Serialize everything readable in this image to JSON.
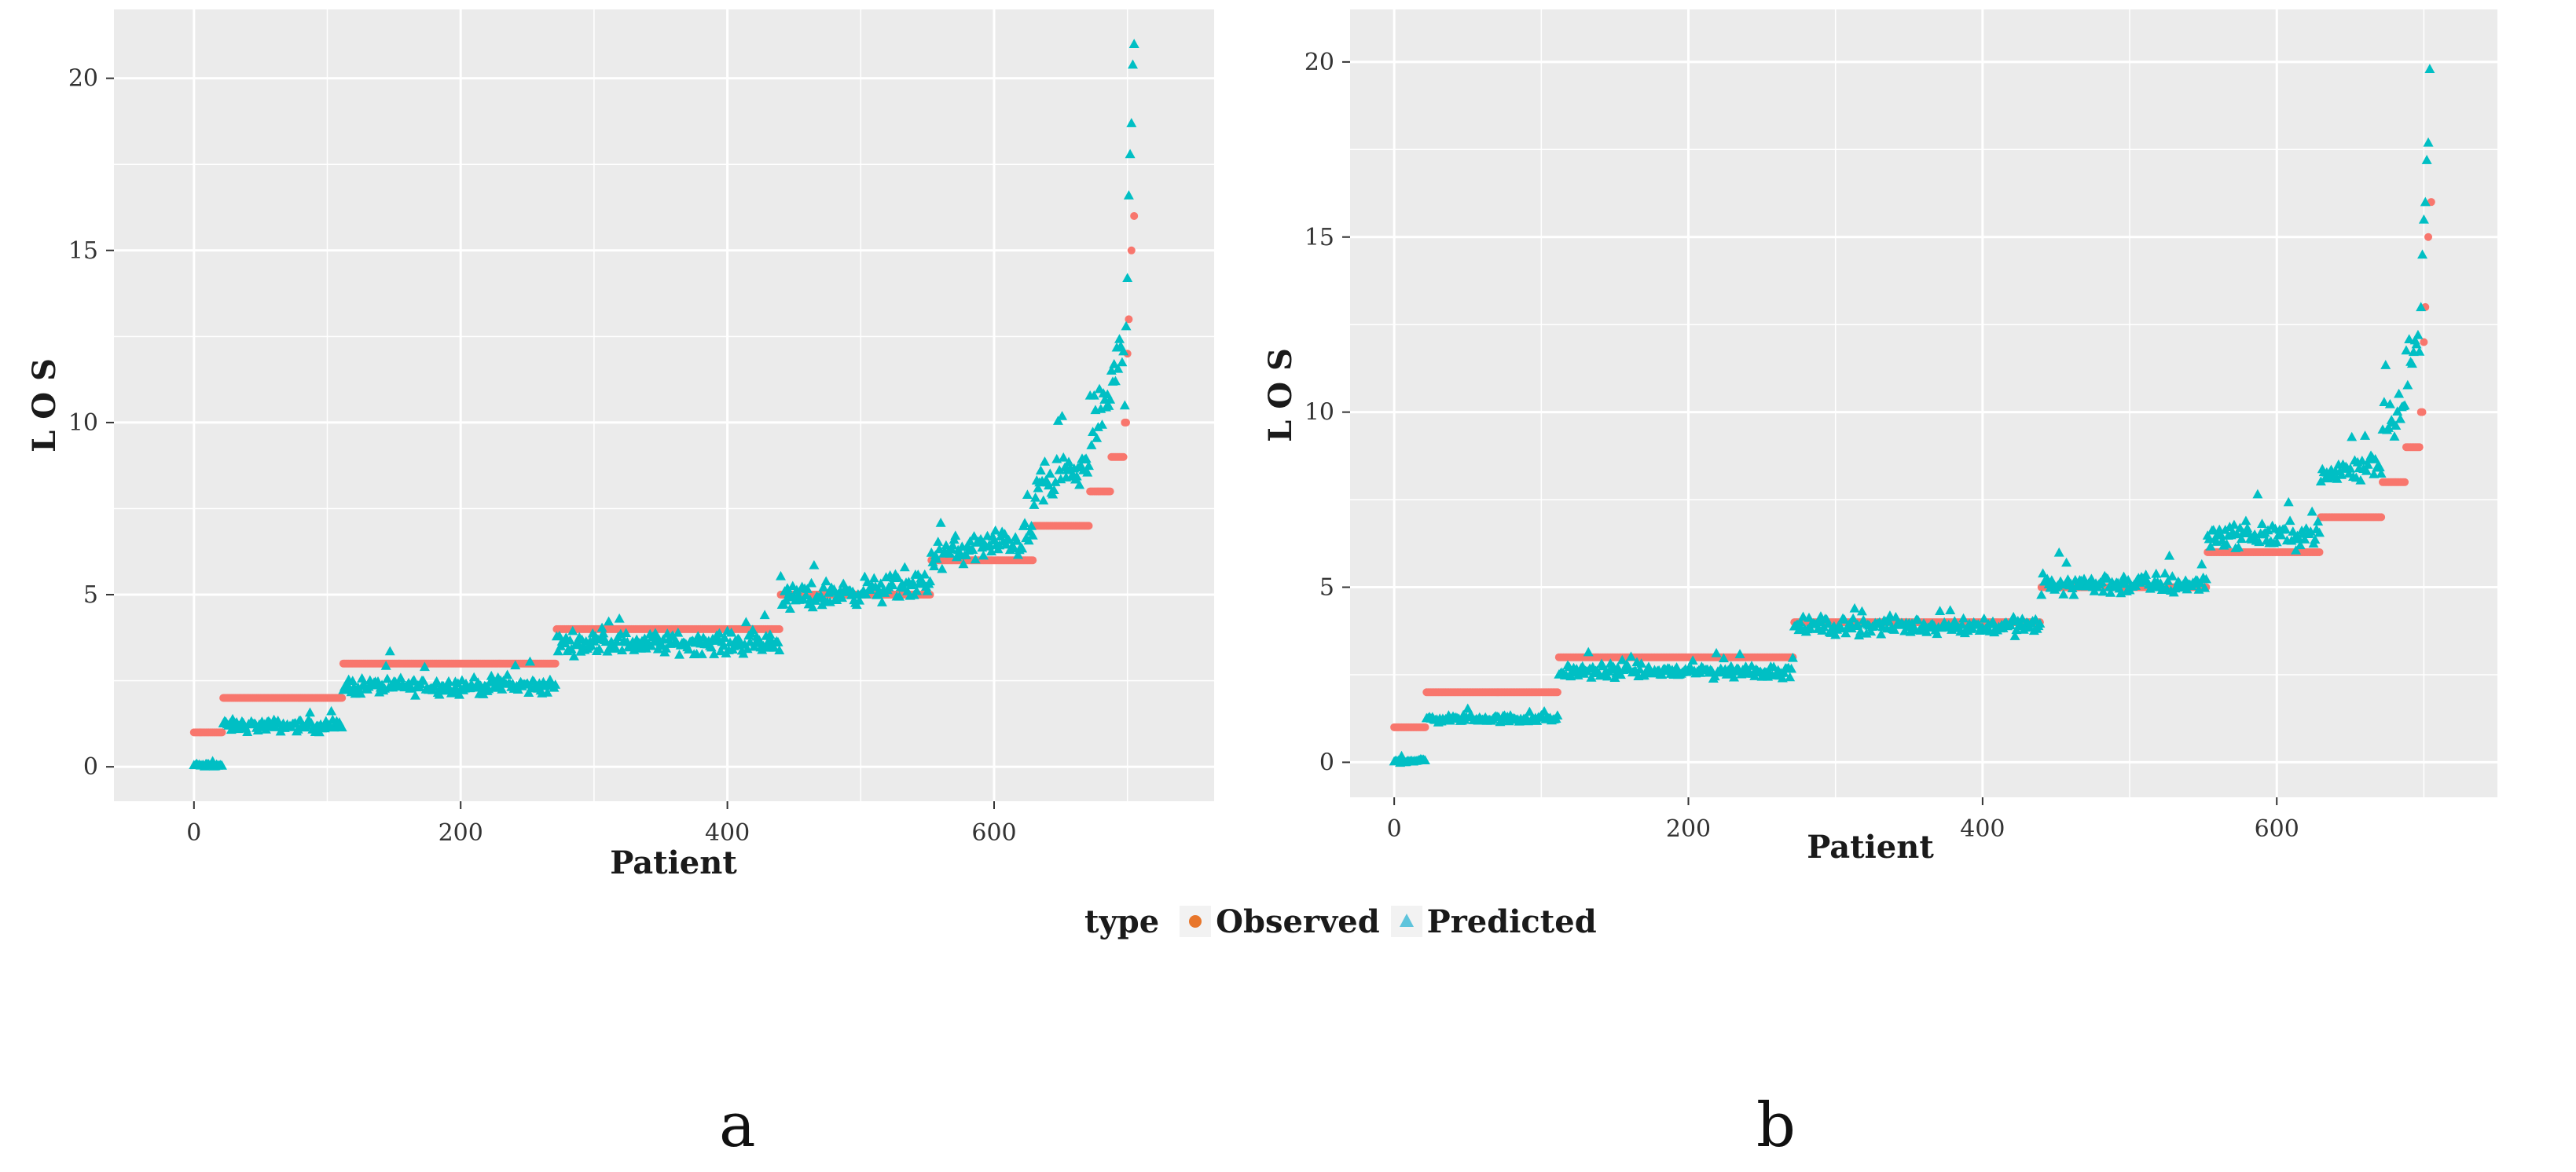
{
  "chart_data": [
    {
      "panel_label": "a",
      "type": "scatter",
      "xlabel": "Patient",
      "ylabel": "L O S",
      "xlim": [
        -60,
        765
      ],
      "ylim": [
        -1.0,
        22.0
      ],
      "xticks": [
        0,
        200,
        400,
        600
      ],
      "yticks": [
        0,
        5,
        10,
        15,
        20
      ],
      "grid": true,
      "observed_los_groups": [
        {
          "los": 1,
          "from": 0,
          "to": 22
        },
        {
          "los": 2,
          "from": 22,
          "to": 112
        },
        {
          "los": 3,
          "from": 112,
          "to": 272
        },
        {
          "los": 4,
          "from": 272,
          "to": 440
        },
        {
          "los": 5,
          "from": 440,
          "to": 553
        },
        {
          "los": 6,
          "from": 553,
          "to": 630
        },
        {
          "los": 7,
          "from": 630,
          "to": 672
        },
        {
          "los": 8,
          "from": 672,
          "to": 688
        },
        {
          "los": 9,
          "from": 688,
          "to": 698
        },
        {
          "los": 10,
          "from": 698,
          "to": 700
        }
      ],
      "observed_tail": [
        [
          700,
          12
        ],
        [
          701,
          13
        ],
        [
          703,
          15
        ],
        [
          705,
          16
        ]
      ],
      "predicted_levels": [
        {
          "from": 0,
          "to": 22,
          "center": 0.05,
          "spread": 0.08
        },
        {
          "from": 22,
          "to": 112,
          "center": 1.2,
          "spread": 0.25
        },
        {
          "from": 112,
          "to": 272,
          "center": 2.35,
          "spread": 0.35
        },
        {
          "from": 272,
          "to": 440,
          "center": 3.6,
          "spread": 0.45
        },
        {
          "from": 440,
          "to": 553,
          "center": 5.1,
          "spread": 0.55
        },
        {
          "from": 553,
          "to": 630,
          "center": 6.4,
          "spread": 0.65
        },
        {
          "from": 630,
          "to": 672,
          "center": 8.4,
          "spread": 0.9
        },
        {
          "from": 672,
          "to": 688,
          "center": 10.3,
          "spread": 1.2
        },
        {
          "from": 688,
          "to": 698,
          "center": 11.6,
          "spread": 1.5
        }
      ],
      "predicted_tail": [
        [
          698,
          10.5
        ],
        [
          699,
          12.8
        ],
        [
          700,
          14.2
        ],
        [
          701,
          16.6
        ],
        [
          702,
          17.8
        ],
        [
          703,
          18.7
        ],
        [
          704,
          20.4
        ],
        [
          705,
          21.0
        ]
      ]
    },
    {
      "panel_label": "b",
      "type": "scatter",
      "xlabel": "Patient",
      "ylabel": "L O S",
      "xlim": [
        -30,
        750
      ],
      "ylim": [
        -1.0,
        21.5
      ],
      "xticks": [
        0,
        200,
        400,
        600
      ],
      "yticks": [
        0,
        5,
        10,
        15,
        20
      ],
      "grid": true,
      "observed_los_groups": [
        {
          "los": 1,
          "from": 0,
          "to": 22
        },
        {
          "los": 2,
          "from": 22,
          "to": 112
        },
        {
          "los": 3,
          "from": 112,
          "to": 272
        },
        {
          "los": 4,
          "from": 272,
          "to": 440
        },
        {
          "los": 5,
          "from": 440,
          "to": 553
        },
        {
          "los": 6,
          "from": 553,
          "to": 630
        },
        {
          "los": 7,
          "from": 630,
          "to": 672
        },
        {
          "los": 8,
          "from": 672,
          "to": 688
        },
        {
          "los": 9,
          "from": 688,
          "to": 698
        },
        {
          "los": 10,
          "from": 698,
          "to": 700
        }
      ],
      "observed_tail": [
        [
          700,
          12
        ],
        [
          701,
          13
        ],
        [
          703,
          15
        ],
        [
          705,
          16
        ]
      ],
      "predicted_levels": [
        {
          "from": 0,
          "to": 22,
          "center": 0.05,
          "spread": 0.08
        },
        {
          "from": 22,
          "to": 112,
          "center": 1.25,
          "spread": 0.15
        },
        {
          "from": 112,
          "to": 272,
          "center": 2.6,
          "spread": 0.3
        },
        {
          "from": 272,
          "to": 440,
          "center": 3.9,
          "spread": 0.35
        },
        {
          "from": 440,
          "to": 553,
          "center": 5.1,
          "spread": 0.45
        },
        {
          "from": 553,
          "to": 630,
          "center": 6.5,
          "spread": 0.5
        },
        {
          "from": 630,
          "to": 672,
          "center": 8.4,
          "spread": 0.6
        },
        {
          "from": 672,
          "to": 688,
          "center": 10.0,
          "spread": 0.9
        },
        {
          "from": 688,
          "to": 698,
          "center": 11.6,
          "spread": 1.3
        }
      ],
      "predicted_tail": [
        [
          698,
          13.0
        ],
        [
          699,
          14.5
        ],
        [
          700,
          15.5
        ],
        [
          701,
          16.0
        ],
        [
          702,
          17.2
        ],
        [
          703,
          17.7
        ],
        [
          704,
          19.8
        ]
      ]
    }
  ],
  "legend": {
    "title": "type",
    "observed_label": "Observed",
    "predicted_label": "Predicted",
    "observed_color": "#f8766d",
    "predicted_color": "#00bfc4"
  },
  "panel_labels": {
    "a": "a",
    "b": "b"
  }
}
